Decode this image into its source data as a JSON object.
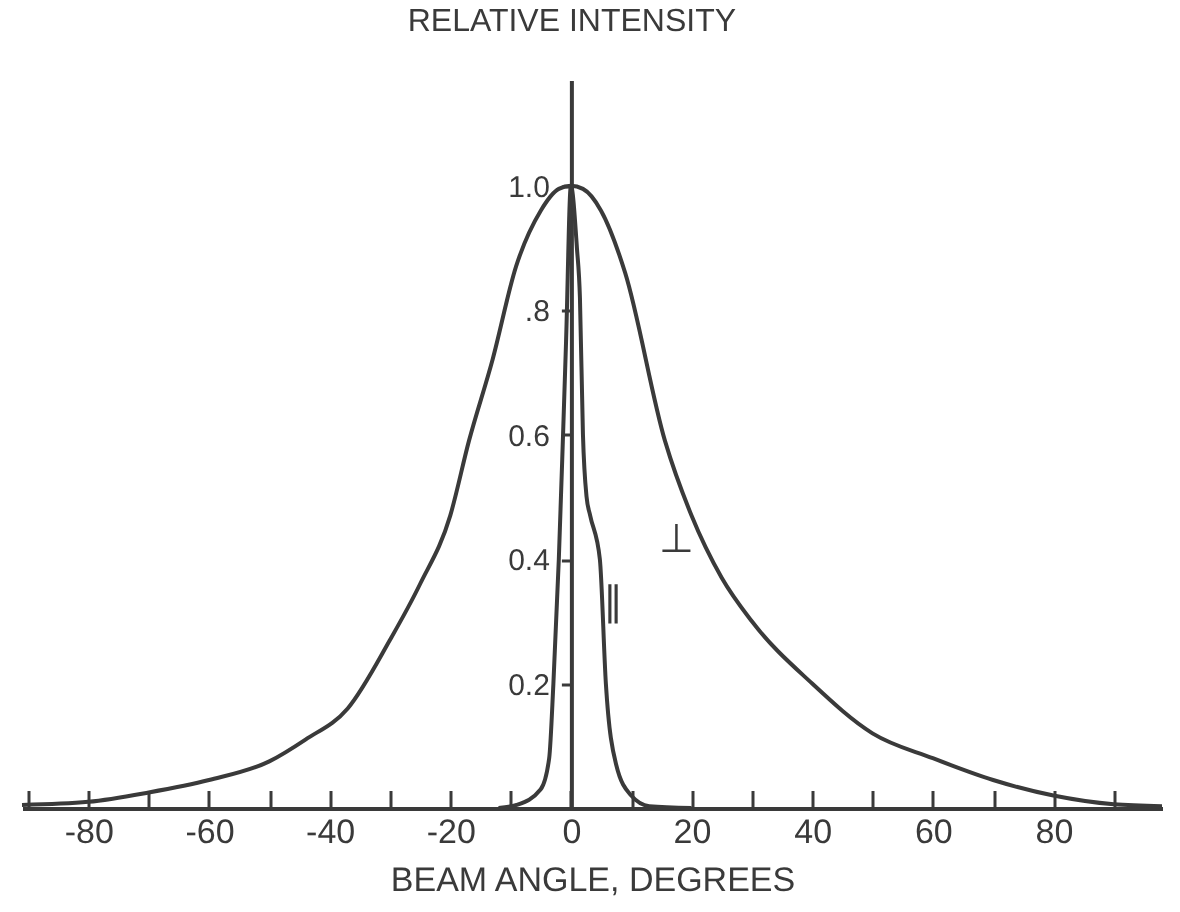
{
  "chart_data": {
    "type": "line",
    "xlabel": "BEAM ANGLE, DEGREES",
    "ylabel": "RELATIVE INTENSITY",
    "xlim": [
      -91,
      98
    ],
    "ylim": [
      0,
      1.17
    ],
    "xticks": [
      {
        "value": -90,
        "label": null
      },
      -80,
      {
        "value": -70,
        "label": null
      },
      -60,
      {
        "value": -50,
        "label": null
      },
      -40,
      {
        "value": -30,
        "label": null
      },
      -20,
      {
        "value": -10,
        "label": null
      },
      0,
      {
        "value": 10,
        "label": null
      },
      20,
      {
        "value": 30,
        "label": null
      },
      40,
      {
        "value": 50,
        "label": null
      },
      60,
      {
        "value": 70,
        "label": null
      },
      80,
      {
        "value": 90,
        "label": null
      }
    ],
    "yticks": [
      0.2,
      0.4,
      0.6,
      {
        "value": 0.8,
        "label": ".8"
      },
      "1.0"
    ],
    "grid": false,
    "marker": "none",
    "line_style": "solid",
    "series": [
      {
        "name": "⊥",
        "color": "#3a3a3a",
        "x": [
          -91,
          -80,
          -70,
          -60,
          -50,
          -44,
          -37,
          -30,
          -25,
          -20,
          -16.9,
          -13,
          -9.1,
          -5,
          -2,
          0,
          2,
          5,
          9,
          15.6,
          20,
          25,
          30,
          40,
          50,
          60,
          70,
          80,
          90,
          98
        ],
        "values": [
          0.005,
          0.01,
          0.025,
          0.045,
          0.075,
          0.11,
          0.16,
          0.27,
          0.36,
          0.47,
          0.59,
          0.72,
          0.87,
          0.96,
          0.995,
          1.0,
          0.995,
          0.96,
          0.86,
          0.59,
          0.47,
          0.37,
          0.3,
          0.2,
          0.12,
          0.08,
          0.045,
          0.02,
          0.006,
          0.003
        ]
      },
      {
        "name": "∥",
        "color": "#3a3a3a",
        "x": [
          -12,
          -9,
          -5,
          -3.6,
          -2.9,
          -2,
          -1.3,
          -0.8,
          0,
          1,
          1.5,
          2,
          2.6,
          3.2,
          4.8,
          5.8,
          7.5,
          10,
          13,
          20
        ],
        "values": [
          0,
          0.005,
          0.03,
          0.08,
          0.2,
          0.4,
          0.6,
          0.75,
          1.0,
          0.9,
          0.82,
          0.6,
          0.5,
          0.47,
          0.4,
          0.2,
          0.07,
          0.02,
          0.003,
          0
        ]
      }
    ]
  }
}
